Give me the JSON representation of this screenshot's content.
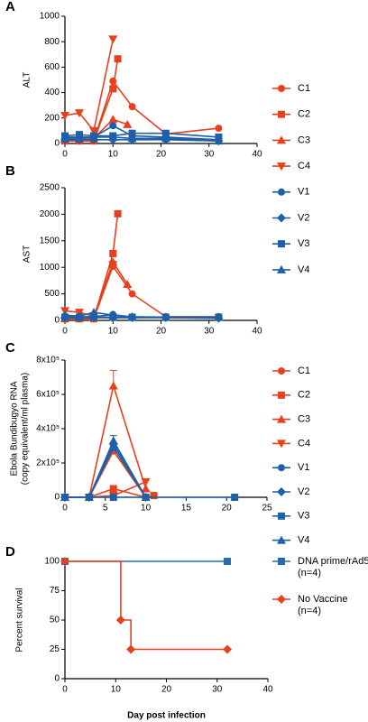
{
  "chart_data": [
    {
      "type": "line",
      "panel": "A",
      "ylabel": "ALT",
      "xlim": [
        0,
        40
      ],
      "xticks": [
        0,
        10,
        20,
        30,
        40
      ],
      "ylim": [
        0,
        1000
      ],
      "yticks": [
        0,
        200,
        400,
        600,
        800,
        1000
      ],
      "legend": true,
      "series": [
        {
          "name": "C1",
          "color": "#e8401c",
          "marker": "circle",
          "x": [
            0,
            3,
            6,
            10,
            14,
            21,
            32
          ],
          "values": [
            20,
            20,
            20,
            490,
            290,
            75,
            120
          ]
        },
        {
          "name": "C2",
          "color": "#e8401c",
          "marker": "square",
          "x": [
            0,
            3,
            6,
            10,
            11
          ],
          "values": [
            20,
            20,
            20,
            430,
            665
          ]
        },
        {
          "name": "C3",
          "color": "#e8401c",
          "marker": "triangle",
          "x": [
            0,
            3,
            6,
            10,
            13
          ],
          "values": [
            30,
            30,
            40,
            190,
            150
          ]
        },
        {
          "name": "C4",
          "color": "#e8401c",
          "marker": "triangle-down",
          "x": [
            0,
            3,
            6,
            10
          ],
          "values": [
            220,
            240,
            100,
            820
          ]
        },
        {
          "name": "V1",
          "color": "#1f5fa8",
          "marker": "circle",
          "x": [
            0,
            3,
            6,
            10,
            14,
            21,
            32
          ],
          "values": [
            50,
            50,
            50,
            140,
            60,
            50,
            30
          ]
        },
        {
          "name": "V2",
          "color": "#1f5fa8",
          "marker": "diamond",
          "x": [
            0,
            3,
            6,
            10,
            14,
            21,
            32
          ],
          "values": [
            30,
            30,
            30,
            30,
            30,
            30,
            20
          ]
        },
        {
          "name": "V3",
          "color": "#1f5fa8",
          "marker": "square",
          "x": [
            0,
            3,
            6,
            10,
            14,
            21,
            32
          ],
          "values": [
            60,
            70,
            60,
            60,
            80,
            80,
            50
          ]
        },
        {
          "name": "V4",
          "color": "#1f5fa8",
          "marker": "triangle",
          "x": [
            0,
            3,
            6,
            10,
            14,
            21,
            32
          ],
          "values": [
            40,
            40,
            50,
            50,
            40,
            40,
            20
          ]
        }
      ]
    },
    {
      "type": "line",
      "panel": "B",
      "ylabel": "AST",
      "xlim": [
        0,
        40
      ],
      "xticks": [
        0,
        10,
        20,
        30,
        40
      ],
      "ylim": [
        0,
        2500
      ],
      "yticks": [
        0,
        500,
        1000,
        1500,
        2000,
        2500
      ],
      "legend": false,
      "series": [
        {
          "color": "#e8401c",
          "marker": "circle",
          "x": [
            0,
            3,
            6,
            10,
            14,
            21,
            32
          ],
          "values": [
            30,
            30,
            30,
            1020,
            500,
            70,
            70
          ]
        },
        {
          "color": "#e8401c",
          "marker": "square",
          "x": [
            0,
            3,
            6,
            10,
            11
          ],
          "values": [
            30,
            30,
            30,
            1260,
            2010
          ]
        },
        {
          "color": "#e8401c",
          "marker": "triangle",
          "x": [
            0,
            3,
            6,
            10,
            13
          ],
          "values": [
            40,
            40,
            60,
            1100,
            680
          ]
        },
        {
          "color": "#e8401c",
          "marker": "triangle-down",
          "x": [
            0,
            3,
            6,
            10
          ],
          "values": [
            180,
            150,
            80,
            1050
          ]
        },
        {
          "color": "#1f5fa8",
          "marker": "circle",
          "x": [
            0,
            3,
            6,
            10,
            14,
            21,
            32
          ],
          "values": [
            80,
            70,
            70,
            110,
            60,
            60,
            60
          ]
        },
        {
          "color": "#1f5fa8",
          "marker": "diamond",
          "x": [
            0,
            3,
            6,
            10,
            14,
            21,
            32
          ],
          "values": [
            50,
            50,
            50,
            50,
            50,
            50,
            40
          ]
        },
        {
          "color": "#1f5fa8",
          "marker": "square",
          "x": [
            0,
            3,
            6,
            10,
            14,
            21,
            32
          ],
          "values": [
            60,
            60,
            60,
            60,
            60,
            60,
            60
          ]
        },
        {
          "color": "#1f5fa8",
          "marker": "triangle",
          "x": [
            0,
            3,
            6,
            10,
            14,
            21,
            32
          ],
          "values": [
            100,
            80,
            150,
            100,
            70,
            60,
            60
          ]
        }
      ]
    },
    {
      "type": "line",
      "panel": "C",
      "ylabel": [
        "Ebola Bundibugyo RNA",
        "(copy equivalent/ml plasma)"
      ],
      "xlim": [
        0,
        25
      ],
      "xticks": [
        0,
        5,
        10,
        15,
        20,
        25
      ],
      "ylim": [
        0,
        800000
      ],
      "yticks": [
        0,
        {
          "value": 200000,
          "label": "2x10⁵"
        },
        {
          "value": 400000,
          "label": "4x10⁵"
        },
        {
          "value": 600000,
          "label": "6x10⁵"
        },
        {
          "value": 800000,
          "label": "8x10⁵"
        }
      ],
      "legend": true,
      "series": [
        {
          "name": "C1",
          "color": "#e8401c",
          "marker": "circle",
          "x": [
            0,
            3,
            6,
            10
          ],
          "values": [
            0,
            0,
            270000,
            0
          ]
        },
        {
          "name": "C2",
          "color": "#e8401c",
          "marker": "square",
          "x": [
            0,
            3,
            6,
            10,
            11
          ],
          "values": [
            0,
            0,
            50000,
            0,
            10000
          ]
        },
        {
          "name": "C3",
          "color": "#e8401c",
          "marker": "triangle",
          "x": [
            0,
            3,
            6,
            10
          ],
          "values": [
            0,
            0,
            650000,
            50000
          ],
          "errors": [
            null,
            null,
            90000,
            null
          ]
        },
        {
          "name": "C4",
          "color": "#e8401c",
          "marker": "triangle-down",
          "x": [
            0,
            3,
            6,
            10
          ],
          "values": [
            0,
            0,
            10000,
            90000
          ]
        },
        {
          "name": "V1",
          "color": "#1f5fa8",
          "marker": "circle",
          "x": [
            0,
            3,
            6,
            10
          ],
          "values": [
            0,
            0,
            290000,
            0
          ]
        },
        {
          "name": "V2",
          "color": "#1f5fa8",
          "marker": "diamond",
          "x": [
            0,
            3,
            6,
            10
          ],
          "values": [
            0,
            0,
            310000,
            0
          ]
        },
        {
          "name": "V3",
          "color": "#1f5fa8",
          "marker": "square",
          "x": [
            0,
            3,
            6,
            10,
            21
          ],
          "values": [
            0,
            0,
            0,
            0,
            0
          ]
        },
        {
          "name": "V4",
          "color": "#1f5fa8",
          "marker": "triangle",
          "x": [
            0,
            3,
            6,
            10
          ],
          "values": [
            0,
            0,
            330000,
            0
          ],
          "errors": [
            null,
            null,
            30000,
            null
          ]
        }
      ]
    },
    {
      "type": "step",
      "panel": "D",
      "ylabel": "Percent survival",
      "xlabel": "Day post infection",
      "xlim": [
        0,
        40
      ],
      "xticks": [
        0,
        10,
        20,
        30,
        40
      ],
      "ylim": [
        0,
        100
      ],
      "yticks": [
        0,
        25,
        50,
        75,
        100
      ],
      "legend": true,
      "series": [
        {
          "name": [
            "DNA prime/rAd5",
            "(n=4)"
          ],
          "color": "#2a6cb0",
          "marker": "square",
          "x": [
            0,
            32
          ],
          "values": [
            100,
            100
          ]
        },
        {
          "name": [
            "No Vaccine",
            "(n=4)"
          ],
          "color": "#e8401c",
          "marker": "diamond",
          "x": [
            0,
            11,
            13,
            32
          ],
          "values": [
            100,
            50,
            25,
            25
          ]
        }
      ]
    }
  ]
}
